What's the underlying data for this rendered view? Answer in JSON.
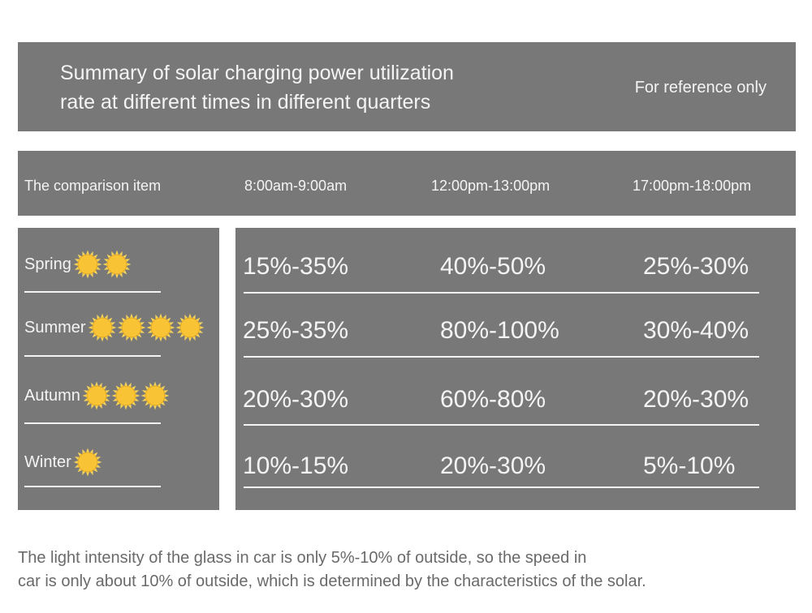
{
  "title": {
    "line1": "Summary of solar charging power utilization",
    "line2": "rate at different times in different quarters",
    "note": "For reference only"
  },
  "header": {
    "columns": [
      "The comparison item",
      "8:00am-9:00am",
      "12:00pm-13:00pm",
      "17:00pm-18:00pm"
    ]
  },
  "rows": [
    {
      "season": "Spring",
      "sun_count": 2,
      "values": [
        "15%-35%",
        "40%-50%",
        "25%-30%"
      ]
    },
    {
      "season": "Summer",
      "sun_count": 4,
      "values": [
        "25%-35%",
        "80%-100%",
        "30%-40%"
      ]
    },
    {
      "season": "Autumn",
      "sun_count": 3,
      "values": [
        "20%-30%",
        "60%-80%",
        "20%-30%"
      ]
    },
    {
      "season": "Winter",
      "sun_count": 1,
      "values": [
        "10%-15%",
        "20%-30%",
        "5%-10%"
      ]
    }
  ],
  "footnote": {
    "line1": "The light intensity of the glass in car is only 5%-10% of outside, so the speed in",
    "line2": "car is only about 10% of outside, which is determined by the characteristics of the solar."
  },
  "colors": {
    "panel": "#787878",
    "text": "#f4f4f4",
    "sun_fill": "#f8c334",
    "sun_ray": "#f5d35a",
    "footnote": "#6a6a6a"
  }
}
